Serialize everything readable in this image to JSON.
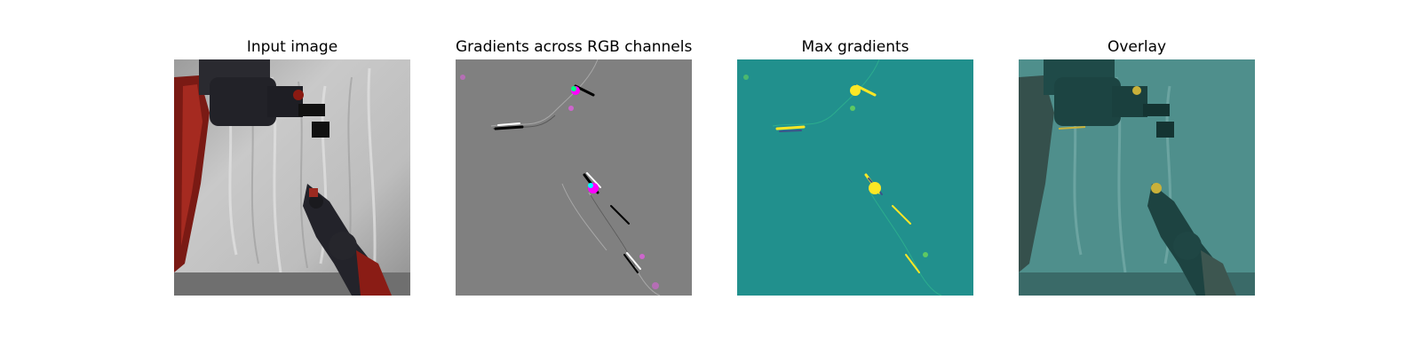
{
  "figure": {
    "panels": [
      {
        "title": "Input image"
      },
      {
        "title": "Gradients across RGB channels"
      },
      {
        "title": "Max gradients"
      },
      {
        "title": "Overlay"
      }
    ]
  },
  "colors": {
    "gradient_bg": "#808080",
    "max_bg": "#21908d",
    "max_highlight": "#fde725",
    "overlay_tint": "#2a7f7c"
  }
}
